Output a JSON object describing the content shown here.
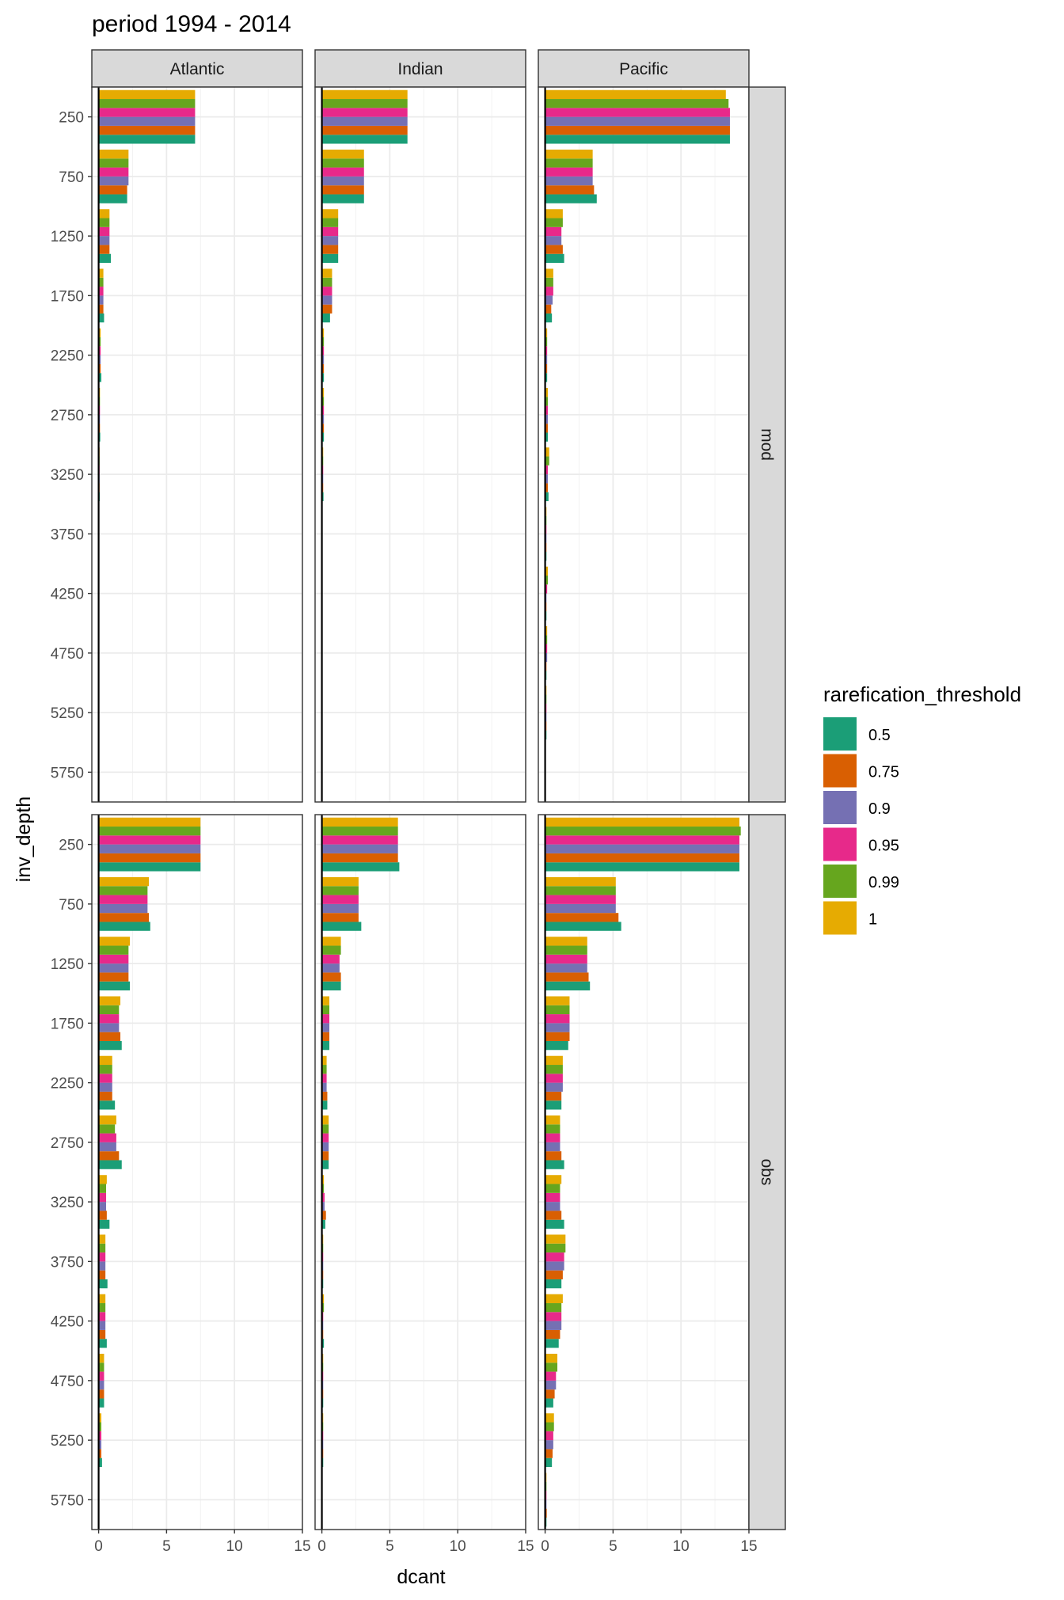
{
  "chart_data": {
    "type": "bar",
    "title": "period 1994 - 2014",
    "xlabel": "dcant",
    "ylabel": "inv_depth",
    "orientation": "horizontal",
    "xlim": [
      -0.5,
      15
    ],
    "x_ticks": [
      0,
      5,
      10,
      15
    ],
    "y_categories": [
      250,
      750,
      1250,
      1750,
      2250,
      2750,
      3250,
      3750,
      4250,
      4750,
      5250,
      5750
    ],
    "facet_columns": [
      "Atlantic",
      "Indian",
      "Pacific"
    ],
    "facet_rows": [
      "mod",
      "obs"
    ],
    "legend": {
      "title": "rarefication_threshold",
      "position": "right",
      "entries": [
        {
          "label": "0.5",
          "color": "#1B9E77"
        },
        {
          "label": "0.75",
          "color": "#D95F02"
        },
        {
          "label": "0.9",
          "color": "#7570B3"
        },
        {
          "label": "0.95",
          "color": "#E7298A"
        },
        {
          "label": "0.99",
          "color": "#66A61E"
        },
        {
          "label": "1",
          "color": "#E6AB02"
        }
      ]
    },
    "grid": true,
    "series_order_note": "within each depth group bars are stacked bottom-to-top: 0.5, 0.75, 0.9, 0.95, 0.99, 1",
    "panels": {
      "mod": {
        "Atlantic": [
          [
            7.1,
            7.1,
            7.1,
            7.1,
            7.1,
            7.1
          ],
          [
            2.1,
            2.1,
            2.2,
            2.2,
            2.2,
            2.2
          ],
          [
            0.9,
            0.8,
            0.8,
            0.8,
            0.8,
            0.8
          ],
          [
            0.4,
            0.35,
            0.35,
            0.35,
            0.35,
            0.35
          ],
          [
            0.2,
            0.15,
            0.15,
            0.15,
            0.15,
            0.15
          ],
          [
            0.12,
            0.1,
            0.1,
            0.1,
            0.1,
            0.1
          ],
          [
            0.08,
            0.07,
            0.07,
            0.07,
            0.07,
            0.07
          ],
          [
            0.05,
            0.05,
            0.05,
            0.05,
            0.05,
            0.05
          ],
          [
            0,
            0,
            0,
            0,
            0,
            0
          ],
          [
            0,
            0,
            0,
            0,
            0,
            0
          ],
          [
            0,
            0,
            0,
            0,
            0,
            0
          ],
          [
            0,
            0,
            0,
            0,
            0,
            0
          ]
        ],
        "Indian": [
          [
            6.3,
            6.3,
            6.3,
            6.3,
            6.3,
            6.3
          ],
          [
            3.1,
            3.1,
            3.1,
            3.1,
            3.1,
            3.1
          ],
          [
            1.2,
            1.2,
            1.2,
            1.2,
            1.2,
            1.2
          ],
          [
            0.6,
            0.75,
            0.75,
            0.75,
            0.75,
            0.75
          ],
          [
            0.15,
            0.15,
            0.15,
            0.15,
            0.15,
            0.15
          ],
          [
            0.15,
            0.15,
            0.15,
            0.15,
            0.15,
            0.15
          ],
          [
            0.12,
            0.1,
            0.1,
            0.1,
            0.1,
            0.1
          ],
          [
            0.05,
            0.05,
            0.05,
            0.05,
            0.05,
            0.05
          ],
          [
            0,
            0,
            0,
            0,
            0,
            0
          ],
          [
            0,
            0,
            0,
            0,
            0,
            0
          ],
          [
            0,
            0,
            0,
            0,
            0,
            0
          ],
          [
            0,
            0,
            0,
            0,
            0,
            0
          ]
        ],
        "Pacific": [
          [
            13.6,
            13.6,
            13.6,
            13.6,
            13.5,
            13.3
          ],
          [
            3.8,
            3.6,
            3.5,
            3.5,
            3.5,
            3.5
          ],
          [
            1.4,
            1.3,
            1.2,
            1.2,
            1.3,
            1.3
          ],
          [
            0.5,
            0.45,
            0.55,
            0.6,
            0.6,
            0.6
          ],
          [
            0.15,
            0.15,
            0.15,
            0.15,
            0.15,
            0.15
          ],
          [
            0.2,
            0.2,
            0.2,
            0.2,
            0.2,
            0.2
          ],
          [
            0.25,
            0.2,
            0.2,
            0.2,
            0.3,
            0.3
          ],
          [
            0.1,
            0.1,
            0.1,
            0.1,
            0.1,
            0.1
          ],
          [
            0.1,
            0.1,
            0.1,
            0.15,
            0.2,
            0.2
          ],
          [
            0.1,
            0.1,
            0.15,
            0.15,
            0.15,
            0.15
          ],
          [
            0.1,
            0.1,
            0.1,
            0.1,
            0.1,
            0.1
          ],
          [
            0,
            0,
            0,
            0,
            0,
            0
          ]
        ]
      },
      "obs": {
        "Atlantic": [
          [
            7.5,
            7.5,
            7.5,
            7.5,
            7.5,
            7.5
          ],
          [
            3.8,
            3.7,
            3.6,
            3.6,
            3.6,
            3.7
          ],
          [
            2.3,
            2.2,
            2.2,
            2.2,
            2.2,
            2.3
          ],
          [
            1.7,
            1.6,
            1.5,
            1.5,
            1.5,
            1.6
          ],
          [
            1.2,
            1.0,
            1.0,
            1.0,
            1.0,
            1.0
          ],
          [
            1.7,
            1.5,
            1.3,
            1.3,
            1.2,
            1.3
          ],
          [
            0.8,
            0.6,
            0.55,
            0.55,
            0.55,
            0.6
          ],
          [
            0.65,
            0.5,
            0.5,
            0.5,
            0.5,
            0.5
          ],
          [
            0.6,
            0.5,
            0.5,
            0.5,
            0.5,
            0.5
          ],
          [
            0.4,
            0.4,
            0.4,
            0.4,
            0.4,
            0.4
          ],
          [
            0.25,
            0.2,
            0.2,
            0.2,
            0.2,
            0.2
          ],
          [
            0.05,
            0.05,
            0.05,
            0.05,
            0.05,
            0.05
          ]
        ],
        "Indian": [
          [
            5.7,
            5.6,
            5.6,
            5.6,
            5.6,
            5.6
          ],
          [
            2.9,
            2.7,
            2.7,
            2.7,
            2.7,
            2.7
          ],
          [
            1.4,
            1.4,
            1.3,
            1.3,
            1.4,
            1.4
          ],
          [
            0.55,
            0.55,
            0.55,
            0.55,
            0.55,
            0.55
          ],
          [
            0.4,
            0.4,
            0.35,
            0.35,
            0.35,
            0.35
          ],
          [
            0.5,
            0.5,
            0.5,
            0.5,
            0.5,
            0.5
          ],
          [
            0.25,
            0.3,
            0.2,
            0.2,
            0.15,
            0.15
          ],
          [
            0.1,
            0.1,
            0.1,
            0.1,
            0.1,
            0.1
          ],
          [
            0.15,
            0.1,
            0.1,
            0.1,
            0.15,
            0.15
          ],
          [
            0.1,
            0.1,
            0.1,
            0.1,
            0.1,
            0.1
          ],
          [
            0.1,
            0.1,
            0.1,
            0.1,
            0.1,
            0.1
          ],
          [
            0,
            0,
            0,
            0,
            0,
            0
          ]
        ],
        "Pacific": [
          [
            14.3,
            14.3,
            14.3,
            14.3,
            14.4,
            14.3
          ],
          [
            5.6,
            5.4,
            5.2,
            5.2,
            5.2,
            5.2
          ],
          [
            3.3,
            3.2,
            3.1,
            3.1,
            3.1,
            3.1
          ],
          [
            1.7,
            1.8,
            1.8,
            1.8,
            1.8,
            1.8
          ],
          [
            1.2,
            1.2,
            1.3,
            1.3,
            1.3,
            1.3
          ],
          [
            1.4,
            1.2,
            1.1,
            1.1,
            1.1,
            1.1
          ],
          [
            1.4,
            1.2,
            1.1,
            1.1,
            1.1,
            1.2
          ],
          [
            1.2,
            1.3,
            1.4,
            1.4,
            1.5,
            1.5
          ],
          [
            1.0,
            1.1,
            1.2,
            1.2,
            1.2,
            1.3
          ],
          [
            0.6,
            0.7,
            0.8,
            0.8,
            0.9,
            0.9
          ],
          [
            0.5,
            0.55,
            0.6,
            0.6,
            0.65,
            0.65
          ],
          [
            0.1,
            0.12,
            0.1,
            0.1,
            0.1,
            0.1
          ]
        ]
      }
    }
  }
}
